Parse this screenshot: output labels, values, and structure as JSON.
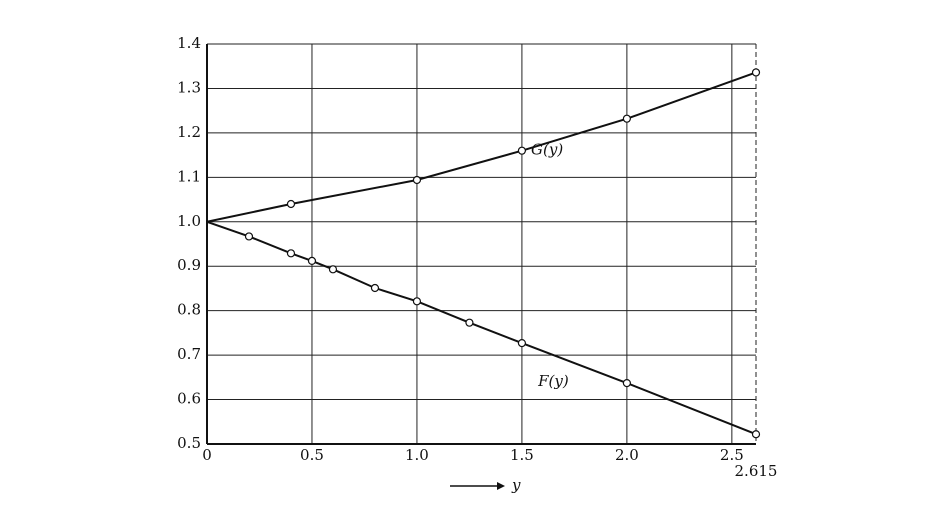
{
  "chart_data": {
    "type": "line",
    "x_label": "y",
    "series": [
      {
        "name": "G(y)",
        "color": "#111111",
        "x": [
          0,
          0.4,
          1.0,
          1.5,
          2.0,
          2.615
        ],
        "values": [
          1.0,
          1.04,
          1.094,
          1.16,
          1.232,
          1.336
        ]
      },
      {
        "name": "F(y)",
        "color": "#111111",
        "x": [
          0,
          0.2,
          0.4,
          0.5,
          0.6,
          0.8,
          1.0,
          1.25,
          1.5,
          2.0,
          2.615
        ],
        "values": [
          1.0,
          0.967,
          0.929,
          0.912,
          0.893,
          0.851,
          0.821,
          0.773,
          0.727,
          0.637,
          0.522
        ]
      }
    ],
    "xlim": [
      0,
      2.615
    ],
    "xticks": [
      0,
      0.5,
      {
        "value": 1,
        "label": "1.0"
      },
      1.5,
      {
        "value": 2,
        "label": "2.0"
      },
      2.5,
      2.615
    ],
    "ylim": [
      0.5,
      1.4
    ],
    "yticks": [
      0.5,
      0.6,
      0.7,
      0.8,
      0.9,
      {
        "value": 1,
        "label": "1.0"
      },
      1.1,
      1.2,
      1.3,
      1.4
    ],
    "grid": true
  }
}
